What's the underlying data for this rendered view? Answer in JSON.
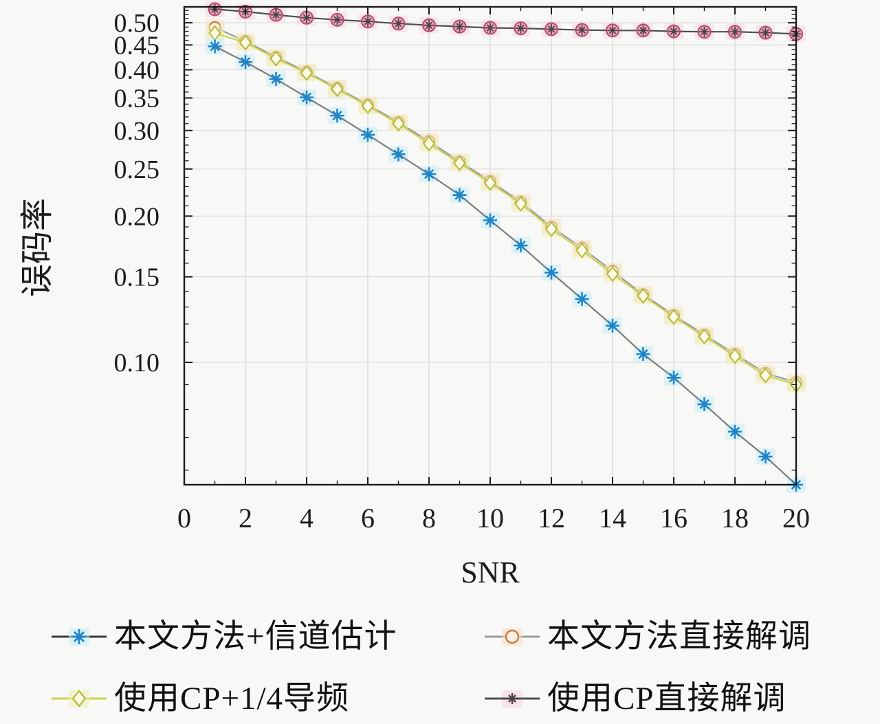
{
  "chart_data": {
    "type": "line",
    "title": "",
    "xlabel": "SNR",
    "ylabel": "误码率",
    "y_scale": "log",
    "grid": true,
    "legend_position": "below-two-columns",
    "xlim": [
      0,
      20
    ],
    "ylim": [
      0.056,
      0.539
    ],
    "x_ticks": [
      0,
      2,
      4,
      6,
      8,
      10,
      12,
      14,
      16,
      18,
      20
    ],
    "x_minor_ticks": [
      1,
      3,
      5,
      7,
      9,
      11,
      13,
      15,
      17,
      19
    ],
    "y_ticks": [
      0.5,
      0.45,
      0.4,
      0.35,
      0.3,
      0.25,
      0.2,
      0.15,
      0.1
    ],
    "y_tick_labels": [
      "0.50",
      "0.45",
      "0.40",
      "0.35",
      "0.30",
      "0.25",
      "0.20",
      "0.15",
      "0.10"
    ],
    "x": [
      1,
      2,
      3,
      4,
      5,
      6,
      7,
      8,
      9,
      10,
      11,
      12,
      13,
      14,
      15,
      16,
      17,
      18,
      19,
      20
    ],
    "series": [
      {
        "name": "本文方法+信道估计",
        "marker": "asterisk",
        "line_color": "#7c7c7c",
        "marker_color": "#1e85c9",
        "fill": "none",
        "halo": "#c6ecf8",
        "values": [
          0.447,
          0.415,
          0.383,
          0.351,
          0.322,
          0.294,
          0.268,
          0.244,
          0.221,
          0.196,
          0.174,
          0.153,
          0.135,
          0.119,
          0.104,
          0.093,
          0.082,
          0.072,
          0.064,
          0.056
        ]
      },
      {
        "name": "本文方法直接解调",
        "marker": "circle",
        "line_color": "#9a9a9a",
        "marker_color": "#c47a4b",
        "fill": "#fdf0e3",
        "halo": "#f9e0c6",
        "values": [
          0.489,
          0.458,
          0.425,
          0.396,
          0.367,
          0.339,
          0.312,
          0.285,
          0.259,
          0.236,
          0.214,
          0.19,
          0.172,
          0.154,
          0.138,
          0.125,
          0.114,
          0.104,
          0.095,
          0.091
        ]
      },
      {
        "name": "使用CP+1/4导频",
        "marker": "diamond",
        "line_color": "#ccd14f",
        "marker_color": "#b4b83c",
        "fill": "#fcfce6",
        "halo": "#eef0ba",
        "values": [
          0.476,
          0.455,
          0.422,
          0.394,
          0.365,
          0.337,
          0.31,
          0.282,
          0.257,
          0.234,
          0.212,
          0.188,
          0.17,
          0.152,
          0.137,
          0.124,
          0.113,
          0.103,
          0.094,
          0.09
        ]
      },
      {
        "name": "使用CP直接解调",
        "marker": "circle-asterisk",
        "line_color": "#4f4f4f",
        "marker_color": "#b4486b",
        "fill": "#e8a2bd",
        "asterisk_color": "#504049",
        "halo": "#f6d7e4",
        "values": [
          0.533,
          0.527,
          0.519,
          0.512,
          0.507,
          0.503,
          0.498,
          0.494,
          0.491,
          0.488,
          0.487,
          0.485,
          0.483,
          0.482,
          0.482,
          0.48,
          0.479,
          0.479,
          0.477,
          0.474
        ]
      }
    ],
    "axis_color": "#1a1a1a",
    "grid_color": "#dadada",
    "text_color": "#1c1c1c"
  }
}
